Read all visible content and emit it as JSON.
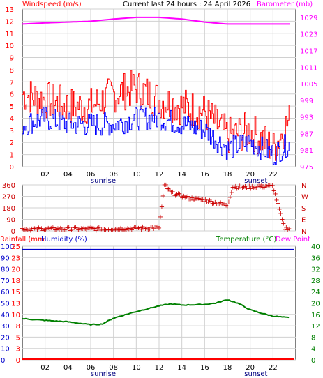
{
  "header": {
    "left_title": "Windspeed (m/s)",
    "center_title": "Current last 24 hours : 24 April 2026",
    "right_title": "Barometer (mb)"
  },
  "wind_panel": {
    "left_ticks": [
      "0",
      "1",
      "2",
      "3",
      "4",
      "5",
      "6",
      "7",
      "8",
      "9",
      "10",
      "11",
      "12",
      "13"
    ],
    "right_ticks": [
      "975",
      "981",
      "987",
      "993",
      "999",
      "1005",
      "1011",
      "1017",
      "1023",
      "1029"
    ],
    "x_ticks": [
      "02",
      "04",
      "06",
      "08",
      "10",
      "12",
      "14",
      "16",
      "18",
      "20",
      "22"
    ],
    "sunrise_label": "sunrise",
    "sunset_label": "sunset"
  },
  "direction_panel": {
    "left_ticks": [
      "0",
      "90",
      "180",
      "270",
      "360"
    ],
    "right_ticks": [
      "N",
      "E",
      "S",
      "W",
      "N"
    ]
  },
  "lower_panel": {
    "title_rain": "Rainfall (mm",
    "title_humidity": "Humidity (%)",
    "title_temperature": "Temperature (°C)",
    "title_dewpoint": "Dew Point",
    "humidity_ticks": [
      "0",
      "10",
      "20",
      "30",
      "40",
      "50",
      "60",
      "70",
      "80",
      "90",
      "100"
    ],
    "rain_ticks": [
      "0",
      "3",
      "5",
      "8",
      "10",
      "13",
      "15",
      "18",
      "20",
      "23",
      "25"
    ],
    "temp_ticks": [
      "0",
      "4",
      "8",
      "12",
      "16",
      "20",
      "24",
      "28",
      "32",
      "36",
      "40"
    ],
    "x_ticks": [
      "02",
      "04",
      "06",
      "08",
      "10",
      "12",
      "14",
      "16",
      "18",
      "20",
      "22"
    ],
    "sunrise_label": "sunrise",
    "sunset_label": "sunset"
  },
  "colors": {
    "gust": "#ff0000",
    "wind": "#0000ff",
    "barometer": "#ff00ff",
    "direction": "#cc0000",
    "temperature": "#008000",
    "humidity": "#0000cc",
    "rain": "#ff0000",
    "grid": "#d0d0d0"
  },
  "chart_data": [
    {
      "type": "line",
      "series": [
        {
          "name": "Windspeed",
          "x": [
            0,
            2,
            4,
            6,
            8,
            10,
            12,
            14,
            16,
            18,
            20,
            22,
            23.5
          ],
          "values": [
            3.5,
            4,
            3.5,
            3.5,
            3.5,
            4,
            4,
            3.5,
            3,
            1.5,
            2,
            1,
            2
          ]
        },
        {
          "name": "Windspeed gust",
          "x": [
            0,
            2,
            4,
            6,
            8,
            10,
            12,
            14,
            16,
            18,
            20,
            22,
            23.5
          ],
          "values": [
            6,
            5.5,
            5,
            5,
            6,
            6.5,
            5.5,
            5,
            4.5,
            2.5,
            3,
            1.5,
            4
          ]
        },
        {
          "name": "Barometer",
          "x": [
            0,
            2,
            4,
            6,
            8,
            10,
            12,
            14,
            16,
            18,
            20,
            22,
            23.5
          ],
          "values": [
            1026.6,
            1027,
            1027.3,
            1027.6,
            1028.4,
            1029,
            1029,
            1028.4,
            1027.3,
            1026.6,
            1026.6,
            1026.6,
            1026.6
          ]
        }
      ],
      "xlim": [
        0,
        24
      ],
      "ylim": [
        0,
        13
      ],
      "y2lim": [
        975,
        1032
      ]
    },
    {
      "type": "scatter",
      "series": [
        {
          "name": "Wind direction",
          "x": [
            0,
            2,
            4,
            6,
            8,
            10,
            12,
            12.5,
            13,
            14,
            15,
            16,
            17,
            18,
            18.5,
            19,
            20,
            21,
            22,
            23
          ],
          "values": [
            15,
            15,
            15,
            15,
            15,
            20,
            25,
            360,
            300,
            270,
            250,
            240,
            220,
            200,
            350,
            340,
            340,
            350,
            350,
            20
          ]
        }
      ],
      "xlim": [
        0,
        24
      ],
      "ylim": [
        0,
        360
      ]
    },
    {
      "type": "line",
      "series": [
        {
          "name": "Temperature",
          "x": [
            0,
            2,
            4,
            6,
            7,
            8,
            10,
            12,
            13,
            14,
            16,
            17,
            18,
            19,
            20,
            21,
            22,
            23.5
          ],
          "values": [
            14.5,
            13.9,
            13.4,
            12.4,
            12.6,
            14.7,
            17,
            19,
            19.7,
            19.3,
            19.5,
            20,
            21.2,
            19.8,
            17.6,
            16.4,
            15.4,
            14.8
          ]
        },
        {
          "name": "Humidity",
          "x": [
            0,
            23.5
          ],
          "values": [
            97,
            97
          ]
        },
        {
          "name": "Rainfall",
          "x": [
            0,
            23.5
          ],
          "values": [
            0,
            0
          ]
        }
      ],
      "xlim": [
        0,
        24
      ],
      "ylim": [
        0,
        100
      ],
      "y2lim": [
        0,
        40
      ]
    }
  ]
}
